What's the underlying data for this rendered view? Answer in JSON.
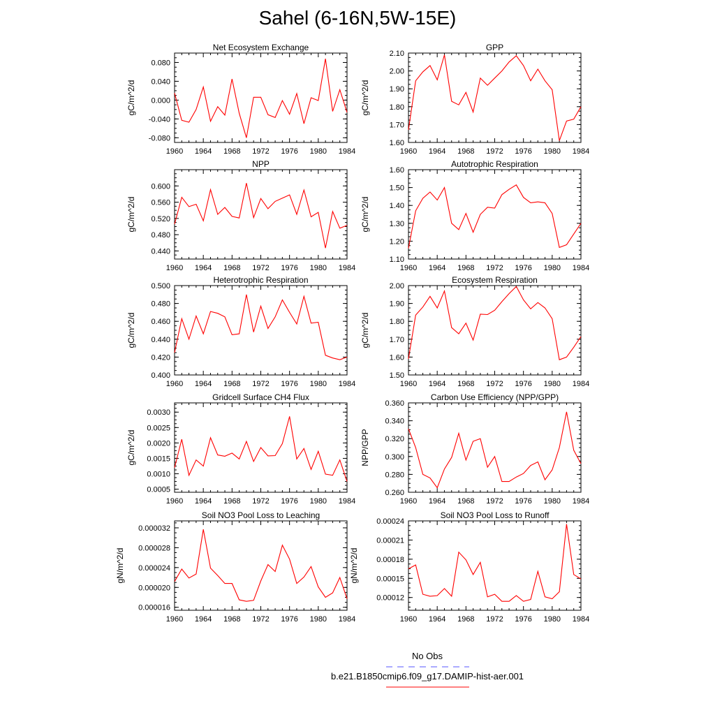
{
  "figure": {
    "title": "Sahel (6-16N,5W-15E)",
    "legend": [
      {
        "label": "No Obs",
        "color": "#5555ff",
        "dash": true
      },
      {
        "label": "b.e21.B1850cmip6.f09_g17.DAMIP-hist-aer.001",
        "color": "#ff0000",
        "dash": false
      }
    ]
  },
  "chart_data": [
    {
      "type": "line",
      "title": "Net Ecosystem Exchange",
      "ylabel": "gC/m^2/d",
      "xlim": [
        1960,
        1984
      ],
      "xticks": [
        "1960",
        "1964",
        "1968",
        "1972",
        "1976",
        "1980",
        "1984"
      ],
      "ylim": [
        -0.09,
        0.1
      ],
      "yticks": [
        "-0.080",
        "-0.040",
        "0.000",
        "0.040",
        "0.080"
      ],
      "color": "#ff0000",
      "x": [
        1960,
        1961,
        1962,
        1963,
        1964,
        1965,
        1966,
        1967,
        1968,
        1969,
        1970,
        1971,
        1972,
        1973,
        1974,
        1975,
        1976,
        1977,
        1978,
        1979,
        1980,
        1981,
        1982,
        1983,
        1984
      ],
      "values": [
        0.015,
        -0.043,
        -0.047,
        -0.02,
        0.028,
        -0.045,
        -0.014,
        -0.032,
        0.045,
        -0.028,
        -0.08,
        0.006,
        0.006,
        -0.031,
        -0.037,
        -0.001,
        -0.03,
        0.014,
        -0.05,
        0.005,
        -0.001,
        0.088,
        -0.024,
        0.022,
        -0.026
      ]
    },
    {
      "type": "line",
      "title": "GPP",
      "ylabel": "gC/m^2/d",
      "xlim": [
        1960,
        1984
      ],
      "xticks": [
        "1960",
        "1964",
        "1968",
        "1972",
        "1976",
        "1980",
        "1984"
      ],
      "ylim": [
        1.6,
        2.1
      ],
      "yticks": [
        "1.60",
        "1.70",
        "1.80",
        "1.90",
        "2.00",
        "2.10"
      ],
      "color": "#ff0000",
      "x": [
        1960,
        1961,
        1962,
        1963,
        1964,
        1965,
        1966,
        1967,
        1968,
        1969,
        1970,
        1971,
        1972,
        1973,
        1974,
        1975,
        1976,
        1977,
        1978,
        1979,
        1980,
        1981,
        1982,
        1983,
        1984
      ],
      "values": [
        1.67,
        1.945,
        1.995,
        2.03,
        1.95,
        2.09,
        1.83,
        1.81,
        1.88,
        1.77,
        1.96,
        1.92,
        1.96,
        2.0,
        2.05,
        2.085,
        2.03,
        1.945,
        2.01,
        1.945,
        1.895,
        1.61,
        1.72,
        1.73,
        1.8
      ]
    },
    {
      "type": "line",
      "title": "NPP",
      "ylabel": "gC/m^2/d",
      "xlim": [
        1960,
        1984
      ],
      "xticks": [
        "1960",
        "1964",
        "1968",
        "1972",
        "1976",
        "1980",
        "1984"
      ],
      "ylim": [
        0.42,
        0.64
      ],
      "yticks": [
        "0.440",
        "0.480",
        "0.520",
        "0.560",
        "0.600"
      ],
      "color": "#ff0000",
      "x": [
        1960,
        1961,
        1962,
        1963,
        1964,
        1965,
        1966,
        1967,
        1968,
        1969,
        1970,
        1971,
        1972,
        1973,
        1974,
        1975,
        1976,
        1977,
        1978,
        1979,
        1980,
        1981,
        1982,
        1983,
        1984
      ],
      "values": [
        0.506,
        0.572,
        0.549,
        0.555,
        0.514,
        0.591,
        0.53,
        0.547,
        0.525,
        0.521,
        0.607,
        0.522,
        0.569,
        0.544,
        0.562,
        0.57,
        0.578,
        0.53,
        0.59,
        0.524,
        0.535,
        0.447,
        0.537,
        0.496,
        0.503
      ]
    },
    {
      "type": "line",
      "title": "Autotrophic Respiration",
      "ylabel": "gC/m^2/d",
      "xlim": [
        1960,
        1984
      ],
      "xticks": [
        "1960",
        "1964",
        "1968",
        "1972",
        "1976",
        "1980",
        "1984"
      ],
      "ylim": [
        1.1,
        1.6
      ],
      "yticks": [
        "1.10",
        "1.20",
        "1.30",
        "1.40",
        "1.50",
        "1.60"
      ],
      "color": "#ff0000",
      "x": [
        1960,
        1961,
        1962,
        1963,
        1964,
        1965,
        1966,
        1967,
        1968,
        1969,
        1970,
        1971,
        1972,
        1973,
        1974,
        1975,
        1976,
        1977,
        1978,
        1979,
        1980,
        1981,
        1982,
        1983,
        1984
      ],
      "values": [
        1.16,
        1.37,
        1.44,
        1.475,
        1.43,
        1.5,
        1.3,
        1.265,
        1.355,
        1.25,
        1.35,
        1.39,
        1.385,
        1.46,
        1.49,
        1.515,
        1.445,
        1.415,
        1.42,
        1.415,
        1.355,
        1.165,
        1.18,
        1.24,
        1.3
      ]
    },
    {
      "type": "line",
      "title": "Heterotrophic Respiration",
      "ylabel": "gC/m^2/d",
      "xlim": [
        1960,
        1984
      ],
      "xticks": [
        "1960",
        "1964",
        "1968",
        "1972",
        "1976",
        "1980",
        "1984"
      ],
      "ylim": [
        0.4,
        0.5
      ],
      "yticks": [
        "0.400",
        "0.420",
        "0.440",
        "0.460",
        "0.480",
        "0.500"
      ],
      "color": "#ff0000",
      "x": [
        1960,
        1961,
        1962,
        1963,
        1964,
        1965,
        1966,
        1967,
        1968,
        1969,
        1970,
        1971,
        1972,
        1973,
        1974,
        1975,
        1976,
        1977,
        1978,
        1979,
        1980,
        1981,
        1982,
        1983,
        1984
      ],
      "values": [
        0.425,
        0.463,
        0.44,
        0.466,
        0.446,
        0.471,
        0.469,
        0.465,
        0.445,
        0.446,
        0.49,
        0.448,
        0.477,
        0.452,
        0.465,
        0.484,
        0.47,
        0.457,
        0.488,
        0.458,
        0.459,
        0.422,
        0.419,
        0.417,
        0.42
      ]
    },
    {
      "type": "line",
      "title": "Ecosystem Respiration",
      "ylabel": "gC/m^2/d",
      "xlim": [
        1960,
        1984
      ],
      "xticks": [
        "1960",
        "1964",
        "1968",
        "1972",
        "1976",
        "1980",
        "1984"
      ],
      "ylim": [
        1.5,
        2.0
      ],
      "yticks": [
        "1.50",
        "1.60",
        "1.70",
        "1.80",
        "1.90",
        "2.00"
      ],
      "color": "#ff0000",
      "x": [
        1960,
        1961,
        1962,
        1963,
        1964,
        1965,
        1966,
        1967,
        1968,
        1969,
        1970,
        1971,
        1972,
        1973,
        1974,
        1975,
        1976,
        1977,
        1978,
        1979,
        1980,
        1981,
        1982,
        1983,
        1984
      ],
      "values": [
        1.59,
        1.835,
        1.88,
        1.94,
        1.875,
        1.97,
        1.765,
        1.73,
        1.79,
        1.695,
        1.84,
        1.838,
        1.862,
        1.91,
        1.955,
        1.995,
        1.92,
        1.87,
        1.905,
        1.875,
        1.815,
        1.585,
        1.6,
        1.655,
        1.715
      ]
    },
    {
      "type": "line",
      "title": "Gridcell Surface CH4 Flux",
      "ylabel": "gC/m^2/d",
      "xlim": [
        1960,
        1984
      ],
      "xticks": [
        "1960",
        "1964",
        "1968",
        "1972",
        "1976",
        "1980",
        "1984"
      ],
      "ylim": [
        0.0004,
        0.0033
      ],
      "yticks": [
        "0.0005",
        "0.0010",
        "0.0015",
        "0.0020",
        "0.0025",
        "0.0030"
      ],
      "color": "#ff0000",
      "x": [
        1960,
        1961,
        1962,
        1963,
        1964,
        1965,
        1966,
        1967,
        1968,
        1969,
        1970,
        1971,
        1972,
        1973,
        1974,
        1975,
        1976,
        1977,
        1978,
        1979,
        1980,
        1981,
        1982,
        1983,
        1984
      ],
      "values": [
        0.0012,
        0.00212,
        0.00095,
        0.00145,
        0.00125,
        0.00217,
        0.00161,
        0.00157,
        0.00167,
        0.00148,
        0.00205,
        0.0014,
        0.00185,
        0.00158,
        0.00159,
        0.00198,
        0.00286,
        0.00148,
        0.00182,
        0.00114,
        0.00173,
        0.00099,
        0.00095,
        0.00145,
        0.00075
      ]
    },
    {
      "type": "line",
      "title": "Carbon Use Efficiency (NPP/GPP)",
      "ylabel": "NPP/GPP",
      "xlim": [
        1960,
        1984
      ],
      "xticks": [
        "1960",
        "1964",
        "1968",
        "1972",
        "1976",
        "1980",
        "1984"
      ],
      "ylim": [
        0.26,
        0.36
      ],
      "yticks": [
        "0.260",
        "0.280",
        "0.300",
        "0.320",
        "0.340",
        "0.360"
      ],
      "color": "#ff0000",
      "x": [
        1960,
        1961,
        1962,
        1963,
        1964,
        1965,
        1966,
        1967,
        1968,
        1969,
        1970,
        1971,
        1972,
        1973,
        1974,
        1975,
        1976,
        1977,
        1978,
        1979,
        1980,
        1981,
        1982,
        1983,
        1984
      ],
      "values": [
        0.331,
        0.31,
        0.28,
        0.276,
        0.265,
        0.286,
        0.299,
        0.326,
        0.296,
        0.317,
        0.32,
        0.288,
        0.3,
        0.272,
        0.272,
        0.277,
        0.281,
        0.29,
        0.294,
        0.274,
        0.285,
        0.31,
        0.35,
        0.307,
        0.292
      ]
    },
    {
      "type": "line",
      "title": "Soil NO3 Pool Loss to Leaching",
      "ylabel": "gN/m^2/d",
      "xlim": [
        1960,
        1984
      ],
      "xticks": [
        "1960",
        "1964",
        "1968",
        "1972",
        "1976",
        "1980",
        "1984"
      ],
      "ylim": [
        1.54e-05,
        3.34e-05
      ],
      "yticks": [
        "0.000016",
        "0.000020",
        "0.000024",
        "0.000028",
        "0.000032"
      ],
      "color": "#ff0000",
      "x": [
        1960,
        1961,
        1962,
        1963,
        1964,
        1965,
        1966,
        1967,
        1968,
        1969,
        1970,
        1971,
        1972,
        1973,
        1974,
        1975,
        1976,
        1977,
        1978,
        1979,
        1980,
        1981,
        1982,
        1983,
        1984
      ],
      "values": [
        2.12e-05,
        2.37e-05,
        2.19e-05,
        2.27e-05,
        3.17e-05,
        2.39e-05,
        2.24e-05,
        2.08e-05,
        2.08e-05,
        1.75e-05,
        1.72e-05,
        1.74e-05,
        2.13e-05,
        2.46e-05,
        2.32e-05,
        2.85e-05,
        2.57e-05,
        2.08e-05,
        2.21e-05,
        2.42e-05,
        2.01e-05,
        1.8e-05,
        1.89e-05,
        2.2e-05,
        1.77e-05
      ]
    },
    {
      "type": "line",
      "title": "Soil NO3 Pool Loss to Runoff",
      "ylabel": "gN/m^2/d",
      "xlim": [
        1960,
        1984
      ],
      "xticks": [
        "1960",
        "1964",
        "1968",
        "1972",
        "1976",
        "1980",
        "1984"
      ],
      "ylim": [
        0.0001,
        0.00024
      ],
      "yticks": [
        "0.00012",
        "0.00015",
        "0.00018",
        "0.00021",
        "0.00024"
      ],
      "color": "#ff0000",
      "x": [
        1960,
        1961,
        1962,
        1963,
        1964,
        1965,
        1966,
        1967,
        1968,
        1969,
        1970,
        1971,
        1972,
        1973,
        1974,
        1975,
        1976,
        1977,
        1978,
        1979,
        1980,
        1981,
        1982,
        1983,
        1984
      ],
      "values": [
        0.000165,
        0.000171,
        0.000125,
        0.000122,
        0.000123,
        0.000134,
        0.000122,
        0.000191,
        0.000179,
        0.000156,
        0.000175,
        0.000121,
        0.000125,
        0.000114,
        0.000114,
        0.000123,
        0.000114,
        0.000117,
        0.000161,
        0.000121,
        0.000118,
        0.000129,
        0.000235,
        0.000156,
        0.000149
      ]
    }
  ]
}
